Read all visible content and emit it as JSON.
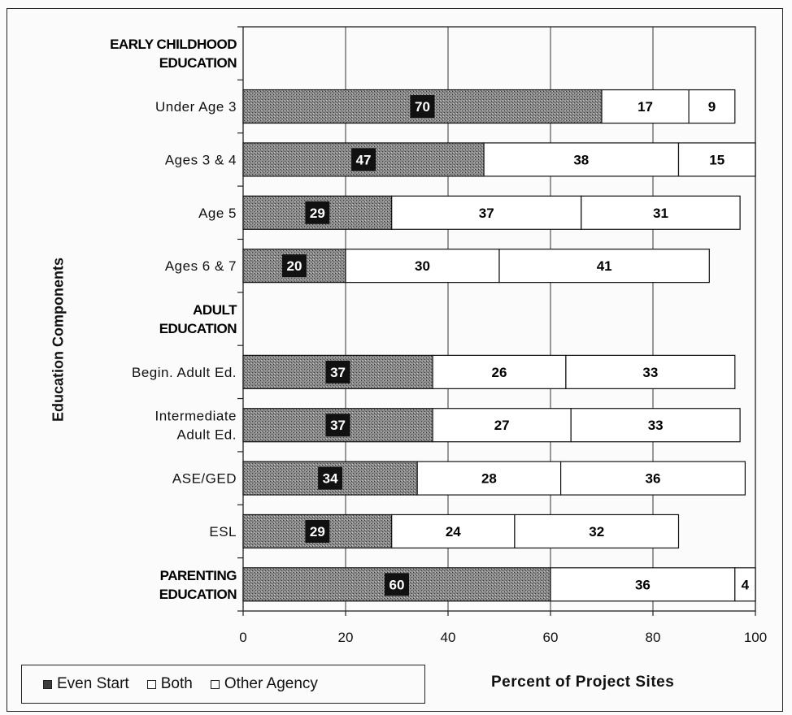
{
  "chart_data": {
    "type": "bar",
    "orientation": "horizontal",
    "stacked": true,
    "xlabel": "Percent of Project Sites",
    "ylabel": "Education Components",
    "xlim": [
      0,
      100
    ],
    "x_ticks": [
      "0",
      "20",
      "40",
      "60",
      "80",
      "100"
    ],
    "grid": true,
    "legend_position": "bottom-left",
    "series": [
      {
        "name": "Even Start",
        "color": "#7d7d7d"
      },
      {
        "name": "Both",
        "color": "#ffffff"
      },
      {
        "name": "Other Agency",
        "color": "#ffffff"
      }
    ],
    "rows": [
      {
        "label": [
          "EARLY CHILDHOOD",
          "EDUCATION"
        ],
        "header": true
      },
      {
        "label": [
          "Under Age 3"
        ],
        "values": [
          70,
          17,
          9
        ]
      },
      {
        "label": [
          "Ages 3 & 4"
        ],
        "values": [
          47,
          38,
          15
        ]
      },
      {
        "label": [
          "Age 5"
        ],
        "values": [
          29,
          37,
          31
        ]
      },
      {
        "label": [
          "Ages 6 & 7"
        ],
        "values": [
          20,
          30,
          41
        ]
      },
      {
        "label": [
          "ADULT",
          "EDUCATION"
        ],
        "header": true
      },
      {
        "label": [
          "Begin. Adult Ed."
        ],
        "values": [
          37,
          26,
          33
        ]
      },
      {
        "label": [
          "Intermediate",
          "Adult Ed."
        ],
        "values": [
          37,
          27,
          33
        ]
      },
      {
        "label": [
          "ASE/GED"
        ],
        "values": [
          34,
          28,
          36
        ]
      },
      {
        "label": [
          "ESL"
        ],
        "values": [
          29,
          24,
          32
        ]
      },
      {
        "label": [
          "PARENTING",
          "EDUCATION"
        ],
        "header": true,
        "values": [
          60,
          36,
          4
        ]
      }
    ]
  },
  "legend": {
    "items": [
      "Even Start",
      "Both",
      "Other Agency"
    ]
  }
}
